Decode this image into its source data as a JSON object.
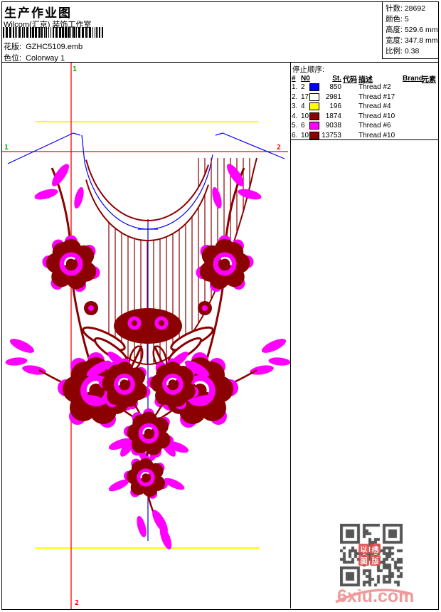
{
  "header": {
    "title": "生产作业图",
    "company": "Wilcom(汇京) 装饰工作室",
    "pattern_label": "花版:",
    "pattern_value": "GZHC5109.emb",
    "colorway_label": "色位:",
    "colorway_value": "Colorway 1"
  },
  "stats": {
    "items": [
      {
        "label": "针数:",
        "value": "28692"
      },
      {
        "label": "颜色:",
        "value": "5"
      },
      {
        "label": "高度:",
        "value": "529.6 mm"
      },
      {
        "label": "宽度:",
        "value": "347.8 mm"
      },
      {
        "label": "比例:",
        "value": "0.38"
      }
    ]
  },
  "thread_table": {
    "title": "停止顺序:",
    "columns": [
      "#",
      "N0",
      "St.",
      "代码",
      "描述",
      "Brand",
      "元素"
    ],
    "rows": [
      {
        "seq": "1.",
        "needle": "2",
        "color": "#0000ff",
        "stitches": "850",
        "code": "",
        "description": "Thread #2",
        "brand": "",
        "element": ""
      },
      {
        "seq": "2.",
        "needle": "17",
        "color": "#ffffff",
        "stitches": "2981",
        "code": "",
        "description": "Thread #17",
        "brand": "",
        "element": ""
      },
      {
        "seq": "3.",
        "needle": "4",
        "color": "#ffff00",
        "stitches": "196",
        "code": "",
        "description": "Thread #4",
        "brand": "",
        "element": ""
      },
      {
        "seq": "4.",
        "needle": "10",
        "color": "#8b0000",
        "stitches": "1874",
        "code": "",
        "description": "Thread #10",
        "brand": "",
        "element": ""
      },
      {
        "seq": "5.",
        "needle": "6",
        "color": "#ff00ff",
        "stitches": "9038",
        "code": "",
        "description": "Thread #6",
        "brand": "",
        "element": ""
      },
      {
        "seq": "6.",
        "needle": "10",
        "color": "#8b0000",
        "stitches": "13753",
        "code": "",
        "description": "Thread #10",
        "brand": "",
        "element": ""
      }
    ]
  },
  "design": {
    "markers": {
      "start_top": "1",
      "start_left": "1",
      "end_right": "2",
      "end_bottom": "2"
    },
    "colors": {
      "outline_blue": "#0000ee",
      "guide_red": "#ff0000",
      "baste_yellow": "#ffff00",
      "rose_maroon": "#8b0000",
      "leaf_magenta": "#ff00ff",
      "marker_green": "#00bb00",
      "qr_gray": "#565656",
      "watermark_pink": "#f09a9a"
    }
  },
  "watermark": {
    "text": "6xiu.com",
    "stamp_chars": [
      "以",
      "绣",
      "图",
      "版"
    ]
  }
}
